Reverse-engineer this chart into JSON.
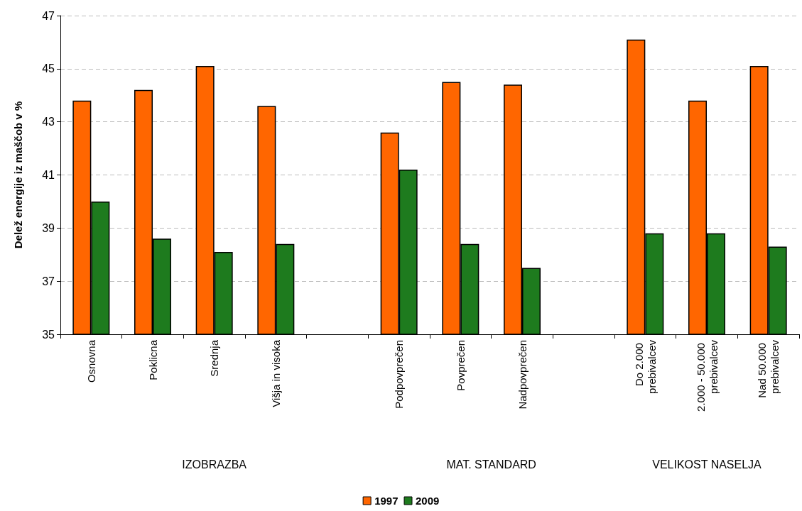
{
  "chart_data": {
    "type": "bar",
    "ylabel": "Delež energije iz maščob v %",
    "categories": [
      "Osnovna",
      "Poklicna",
      "Srednja",
      "Višja in visoka",
      null,
      "Podpovprečen",
      "Povprečen",
      "Nadpovprečen",
      null,
      "Do 2.000 prebivalcev",
      "2.000 - 50.000 prebivalcev",
      "Nad 50.000 prebivalcev"
    ],
    "series": [
      {
        "name": "1997",
        "color": "#ff6600",
        "values": [
          43.8,
          44.2,
          45.1,
          43.6,
          null,
          42.6,
          44.5,
          44.4,
          null,
          46.1,
          43.8,
          45.1
        ]
      },
      {
        "name": "2009",
        "color": "#1e7b1e",
        "values": [
          40.0,
          38.6,
          38.1,
          38.4,
          null,
          41.2,
          38.4,
          37.5,
          null,
          38.8,
          38.8,
          38.3
        ]
      }
    ],
    "annotations": [
      "IZOBRAZBA",
      "MAT. STANDARD",
      "VELIKOST NASELJA"
    ],
    "ylim": [
      35,
      47
    ],
    "yticks": [
      35,
      37,
      39,
      41,
      43,
      45,
      47
    ],
    "grid": "y",
    "legend": "bottom"
  }
}
